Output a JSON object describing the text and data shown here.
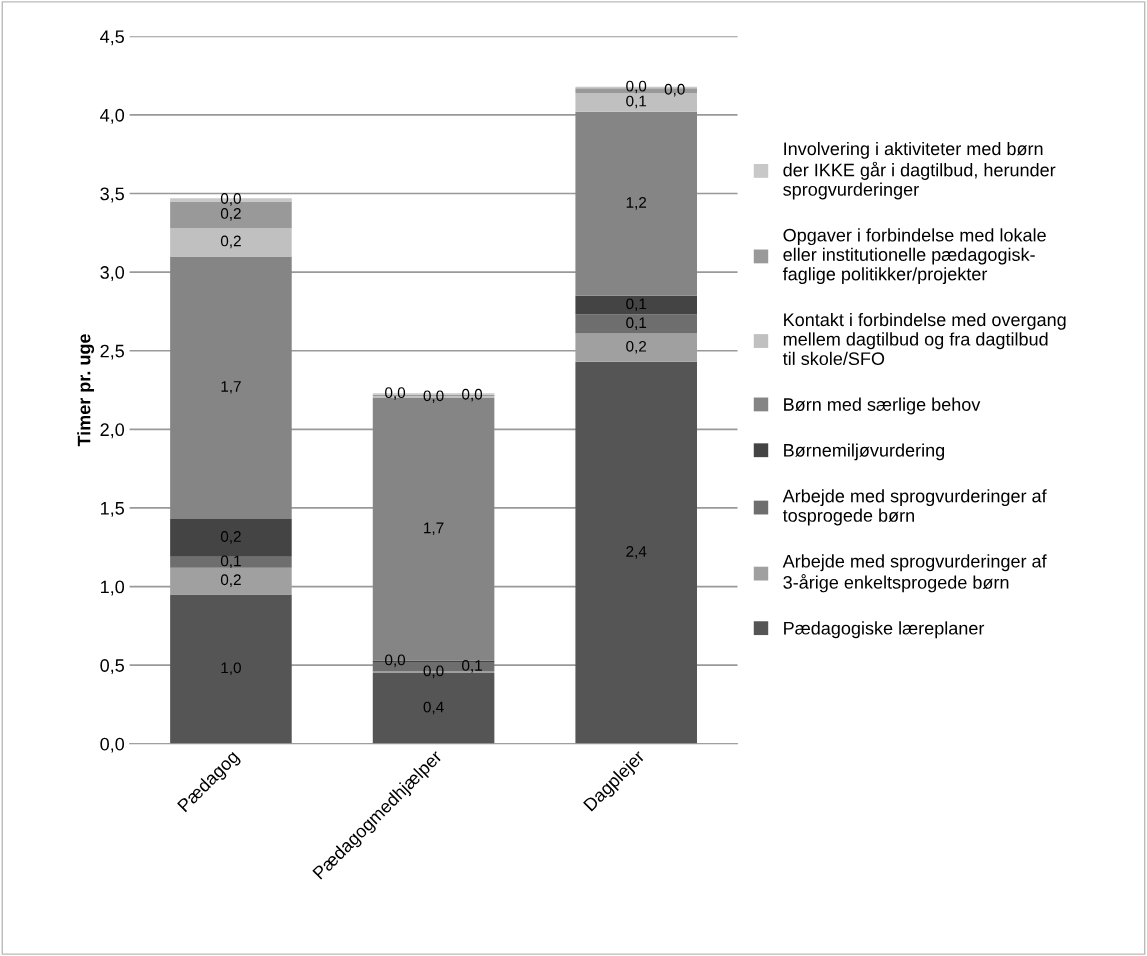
{
  "chart_data": {
    "type": "bar",
    "stacked": true,
    "ylabel": "Timer pr. uge",
    "categories": [
      "Pædagog",
      "Pædagogmedhjælper",
      "Dagplejer"
    ],
    "series": [
      {
        "name": "Pædagogiske læreplaner",
        "color": "#555555",
        "values": [
          0.95,
          0.45,
          2.43
        ],
        "value_labels": [
          "1,0",
          "0,4",
          "2,4"
        ]
      },
      {
        "name": "Arbejde med sprogvurderinger af\n3-årige enkeltsprogede børn",
        "color": "#a0a0a0",
        "values": [
          0.17,
          0.01,
          0.18
        ],
        "value_labels": [
          "0,2",
          "0,0",
          "0,2"
        ]
      },
      {
        "name": "Arbejde med sprogvurderinger af\ntosprogede børn",
        "color": "#6e6e6e",
        "values": [
          0.07,
          0.06,
          0.12
        ],
        "value_labels": [
          "0,1",
          "0,1",
          "0,1"
        ]
      },
      {
        "name": "Børnemiljøvurdering",
        "color": "#444444",
        "values": [
          0.24,
          0.01,
          0.12
        ],
        "value_labels": [
          "0,2",
          "0,0",
          "0,1"
        ]
      },
      {
        "name": "Børn med særlige behov",
        "color": "#858585",
        "values": [
          1.67,
          1.67,
          1.17
        ],
        "value_labels": [
          "1,7",
          "1,7",
          "1,2"
        ]
      },
      {
        "name": "Kontakt i forbindelse med overgang\nmellem dagtilbud og fra dagtilbud\ntil skole/SFO",
        "color": "#c0c0c0",
        "values": [
          0.18,
          0.01,
          0.12
        ],
        "value_labels": [
          "0,2",
          "0,0",
          "0,1"
        ]
      },
      {
        "name": "Opgaver i forbindelse med lokale\neller institutionelle pædagogisk-\nfaglige politikker/projekter",
        "color": "#999999",
        "values": [
          0.17,
          0.01,
          0.03
        ],
        "value_labels": [
          "0,2",
          "0,0",
          "0,0"
        ]
      },
      {
        "name": "Involvering i aktiviteter med børn\nder IKKE går i dagtilbud, herunder\nsprogvurderinger",
        "color": "#c8c8c8",
        "values": [
          0.02,
          0.01,
          0.01
        ],
        "value_labels": [
          "0,0",
          "0,0",
          "0,0"
        ]
      }
    ],
    "ylim": [
      0,
      4.5
    ],
    "yticks": [
      {
        "value": 0,
        "label": "0,0"
      },
      {
        "value": 0.5,
        "label": "0,5"
      },
      {
        "value": 1,
        "label": "1,0"
      },
      {
        "value": 1.5,
        "label": "1,5"
      },
      {
        "value": 2,
        "label": "2,0"
      },
      {
        "value": 2.5,
        "label": "2,5"
      },
      {
        "value": 3,
        "label": "3,0"
      },
      {
        "value": 3.5,
        "label": "3,5"
      },
      {
        "value": 4,
        "label": "4,0"
      },
      {
        "value": 4.5,
        "label": "4,5"
      }
    ],
    "grid": "y",
    "legend": "right"
  }
}
